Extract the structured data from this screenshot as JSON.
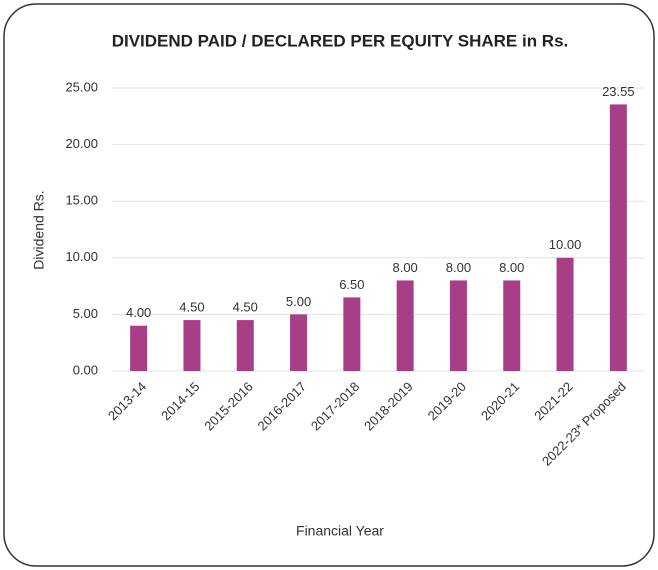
{
  "chart_data": {
    "type": "bar",
    "title": "DIVIDEND PAID / DECLARED PER EQUITY SHARE in Rs.",
    "y_label": "Dividend Rs.",
    "x_label": "Financial Year",
    "categories": [
      "2013-14",
      "2014-15",
      "2015-2016",
      "2016-2017",
      "2017-2018",
      "2018-2019",
      "2019-20",
      "2020-21",
      "2021-22",
      "2022-23* Proposed"
    ],
    "values": [
      4,
      4.5,
      4.5,
      5,
      6.5,
      8,
      8,
      8,
      10,
      23.55
    ],
    "value_labels": [
      "4.00",
      "4.50",
      "4.50",
      "5.00",
      "6.50",
      "8.00",
      "8.00",
      "8.00",
      "10.00",
      "23.55"
    ],
    "color": "#a83f86",
    "ylim": [
      0,
      25
    ],
    "yticks": [
      {
        "value": 0,
        "label": "0.00"
      },
      {
        "value": 5,
        "label": "5.00"
      },
      {
        "value": 10,
        "label": "10.00"
      },
      {
        "value": 15,
        "label": "15.00"
      },
      {
        "value": 20,
        "label": "20.00"
      },
      {
        "value": 25,
        "label": "25.00"
      }
    ],
    "grid": true
  }
}
